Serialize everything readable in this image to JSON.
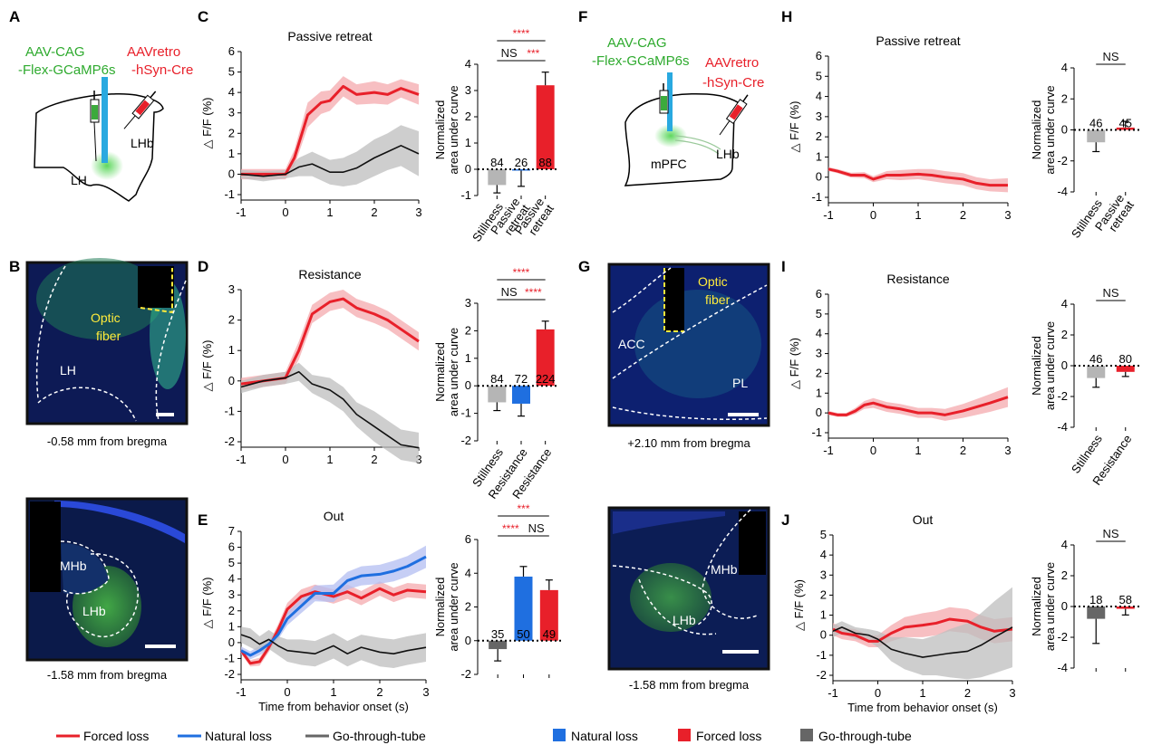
{
  "panel_labels": {
    "a": "A",
    "b": "B",
    "c": "C",
    "d": "D",
    "e": "E",
    "f": "F",
    "g": "G",
    "h": "H",
    "i": "I",
    "j": "J"
  },
  "schematic_left": {
    "green_line1": "AAV-CAG",
    "green_line2": "-Flex-GCaMP6s",
    "red_line1": "AAVretro",
    "red_line2": "-hSyn-Cre",
    "region1": "LH",
    "region2": "LHb"
  },
  "schematic_right": {
    "green_line1": "AAV-CAG",
    "green_line2": "-Flex-GCaMP6s",
    "red_line1": "AAVretro",
    "red_line2": "-hSyn-Cre",
    "region1": "mPFC",
    "region2": "LHb"
  },
  "histology": {
    "b_top": {
      "labels": [
        "Optic",
        "fiber",
        "LH"
      ],
      "caption": "-0.58 mm from bregma"
    },
    "b_bottom": {
      "labels": [
        "MHb",
        "LHb"
      ],
      "caption": "-1.58 mm from bregma"
    },
    "g_top": {
      "labels": [
        "Optic",
        "fiber",
        "ACC",
        "PL"
      ],
      "caption": "+2.10 mm from bregma"
    },
    "g_bottom": {
      "labels": [
        "MHb",
        "LHb"
      ],
      "caption": "-1.58 mm from bregma"
    }
  },
  "common": {
    "y_axis_label": "△ F/F (%)",
    "bar_y_label1": "Normalized",
    "bar_y_label2": "area under curve",
    "x_axis_label": "Time from behavior onset (s)"
  },
  "legend_left": [
    {
      "label": "Forced loss",
      "color": "#e8202a"
    },
    {
      "label": "Natural loss",
      "color": "#1f6fe0"
    },
    {
      "label": "Go-through-tube",
      "color": "#666666"
    }
  ],
  "legend_right": [
    {
      "label": "Natural loss",
      "color": "#1f6fe0"
    },
    {
      "label": "Forced loss",
      "color": "#e8202a"
    },
    {
      "label": "Go-through-tube",
      "color": "#666666"
    }
  ],
  "colors": {
    "red": "#e8202a",
    "blue": "#1f6fe0",
    "gray": "#b5b5b5",
    "darkgray": "#666666",
    "sig": "#e8202a"
  },
  "chart_data": [
    {
      "id": "C",
      "type": "line",
      "title": "Passive retreat",
      "xlim": [
        -1,
        3
      ],
      "ylim": [
        -1,
        6
      ],
      "xticks": [
        -1,
        0,
        1,
        2,
        3
      ],
      "yticks": [
        -1,
        0,
        1,
        2,
        3,
        4,
        5,
        6
      ],
      "series": [
        {
          "name": "Forced loss",
          "color": "red",
          "x": [
            -1,
            -0.5,
            0,
            0.2,
            0.5,
            0.8,
            1,
            1.3,
            1.6,
            2,
            2.3,
            2.6,
            3
          ],
          "y": [
            0,
            0,
            0,
            0.8,
            2.9,
            3.5,
            3.6,
            4.3,
            3.9,
            4.0,
            3.9,
            4.2,
            3.9
          ],
          "err": [
            0.25,
            0.25,
            0.25,
            0.4,
            0.6,
            0.55,
            0.5,
            0.5,
            0.5,
            0.55,
            0.5,
            0.45,
            0.5
          ]
        },
        {
          "name": "Go-through-tube",
          "color": "black",
          "x": [
            -1,
            -0.5,
            0,
            0.3,
            0.6,
            1,
            1.3,
            1.6,
            2,
            2.3,
            2.6,
            3
          ],
          "y": [
            0,
            -0.1,
            0,
            0.35,
            0.5,
            0.1,
            0.1,
            0.3,
            0.8,
            1.1,
            1.4,
            1.0
          ],
          "err": [
            0.2,
            0.25,
            0.2,
            0.45,
            0.6,
            0.6,
            0.7,
            0.8,
            0.9,
            0.9,
            1.0,
            1.1
          ]
        }
      ]
    },
    {
      "id": "C_bar",
      "type": "bar",
      "categories": [
        "Stillness",
        "Passive retreat",
        "Passive retreat"
      ],
      "values": [
        -0.6,
        -0.05,
        3.2
      ],
      "err": [
        0.3,
        0.6,
        0.5
      ],
      "n": [
        "84",
        "26",
        "88"
      ],
      "colors": [
        "gray",
        "blue",
        "red"
      ],
      "ylim": [
        -1,
        4
      ],
      "yticks": [
        -1,
        0,
        1,
        2,
        3,
        4
      ],
      "sig": [
        {
          "text": "NS",
          "color": "black",
          "from": 0,
          "to": 1,
          "level": 0
        },
        {
          "text": "***",
          "color": "sig",
          "from": 1,
          "to": 2,
          "level": 0
        },
        {
          "text": "****",
          "color": "sig",
          "from": 0,
          "to": 2,
          "level": 1
        }
      ]
    },
    {
      "id": "D",
      "type": "line",
      "title": "Resistance",
      "xlim": [
        -1,
        3
      ],
      "ylim": [
        -2,
        3
      ],
      "xticks": [
        -1,
        0,
        1,
        2,
        3
      ],
      "yticks": [
        -2,
        -1,
        0,
        1,
        2,
        3
      ],
      "series": [
        {
          "name": "Forced loss",
          "color": "red",
          "x": [
            -1,
            -0.5,
            0,
            0.3,
            0.6,
            1,
            1.3,
            1.6,
            2,
            2.3,
            2.6,
            3
          ],
          "y": [
            -0.1,
            0,
            0.1,
            1.0,
            2.2,
            2.6,
            2.7,
            2.4,
            2.2,
            2.0,
            1.7,
            1.3
          ],
          "err": [
            0.2,
            0.2,
            0.2,
            0.3,
            0.3,
            0.3,
            0.3,
            0.3,
            0.3,
            0.3,
            0.3,
            0.3
          ]
        },
        {
          "name": "Go-through-tube",
          "color": "black",
          "x": [
            -1,
            -0.5,
            0,
            0.3,
            0.6,
            1,
            1.3,
            1.6,
            2,
            2.3,
            2.6,
            3
          ],
          "y": [
            -0.2,
            0,
            0.1,
            0.3,
            -0.1,
            -0.3,
            -0.6,
            -1.1,
            -1.5,
            -1.8,
            -2.1,
            -2.2
          ],
          "err": [
            0.2,
            0.2,
            0.2,
            0.3,
            0.3,
            0.4,
            0.4,
            0.4,
            0.5,
            0.5,
            0.5,
            0.5
          ]
        }
      ]
    },
    {
      "id": "D_bar",
      "type": "bar",
      "categories": [
        "Stillness",
        "Resistance",
        "Resistance"
      ],
      "values": [
        -0.6,
        -0.65,
        2.05
      ],
      "err": [
        0.3,
        0.45,
        0.3
      ],
      "n": [
        "84",
        "72",
        "224"
      ],
      "colors": [
        "gray",
        "blue",
        "red"
      ],
      "ylim": [
        -2,
        3
      ],
      "yticks": [
        -2,
        -1,
        0,
        1,
        2,
        3
      ],
      "sig": [
        {
          "text": "NS",
          "color": "black",
          "from": 0,
          "to": 1,
          "level": 0
        },
        {
          "text": "****",
          "color": "sig",
          "from": 1,
          "to": 2,
          "level": 0
        },
        {
          "text": "****",
          "color": "sig",
          "from": 0,
          "to": 2,
          "level": 1
        }
      ]
    },
    {
      "id": "E",
      "type": "line",
      "title": "Out",
      "xlim": [
        -1,
        3
      ],
      "ylim": [
        -2,
        7
      ],
      "xticks": [
        -1,
        0,
        1,
        2,
        3
      ],
      "yticks": [
        -2,
        -1,
        0,
        1,
        2,
        3,
        4,
        5,
        6,
        7
      ],
      "xlabel": "Time from behavior onset (s)",
      "series": [
        {
          "name": "Forced loss",
          "color": "red",
          "x": [
            -1,
            -0.8,
            -0.6,
            -0.4,
            -0.2,
            0,
            0.3,
            0.6,
            1,
            1.3,
            1.6,
            2,
            2.3,
            2.6,
            3
          ],
          "y": [
            -0.5,
            -1.3,
            -1.2,
            -0.3,
            0.8,
            2.1,
            2.9,
            3.2,
            2.9,
            3.2,
            2.8,
            3.4,
            3.0,
            3.3,
            3.2
          ],
          "err": [
            0.2,
            0.2,
            0.25,
            0.3,
            0.35,
            0.4,
            0.45,
            0.45,
            0.45,
            0.45,
            0.45,
            0.45,
            0.45,
            0.45,
            0.45
          ]
        },
        {
          "name": "Natural loss",
          "color": "blue",
          "x": [
            -1,
            -0.8,
            -0.6,
            -0.4,
            -0.2,
            0,
            0.3,
            0.6,
            1,
            1.3,
            1.6,
            2,
            2.3,
            2.6,
            3
          ],
          "y": [
            -0.5,
            -0.8,
            -0.5,
            -0.1,
            0.5,
            1.5,
            2.3,
            3.1,
            3.1,
            3.9,
            4.2,
            4.3,
            4.5,
            4.8,
            5.4
          ],
          "err": [
            0.25,
            0.25,
            0.3,
            0.3,
            0.3,
            0.4,
            0.45,
            0.5,
            0.55,
            0.55,
            0.6,
            0.6,
            0.65,
            0.65,
            0.7
          ]
        },
        {
          "name": "Go-through-tube",
          "color": "black",
          "x": [
            -1,
            -0.8,
            -0.6,
            -0.4,
            -0.2,
            0,
            0.3,
            0.6,
            1,
            1.3,
            1.6,
            2,
            2.3,
            2.6,
            3
          ],
          "y": [
            0.5,
            0.3,
            -0.1,
            0.2,
            -0.2,
            -0.5,
            -0.6,
            -0.7,
            -0.2,
            -0.7,
            -0.3,
            -0.6,
            -0.7,
            -0.5,
            -0.3
          ],
          "err": [
            0.5,
            0.6,
            0.5,
            0.6,
            0.6,
            0.7,
            0.8,
            0.8,
            0.8,
            0.8,
            0.8,
            0.9,
            0.9,
            0.9,
            0.9
          ]
        }
      ]
    },
    {
      "id": "E_bar",
      "type": "bar",
      "categories": [
        "",
        "",
        ""
      ],
      "values": [
        -0.5,
        3.8,
        3.0
      ],
      "err": [
        0.7,
        0.6,
        0.6
      ],
      "n": [
        "35",
        "50",
        "49"
      ],
      "colors": [
        "darkgray",
        "blue",
        "red"
      ],
      "ylim": [
        -2,
        6
      ],
      "yticks": [
        -2,
        0,
        2,
        4,
        6
      ],
      "sig": [
        {
          "text": "****",
          "color": "sig",
          "from": 0,
          "to": 1,
          "level": 0
        },
        {
          "text": "NS",
          "color": "black",
          "from": 1,
          "to": 2,
          "level": 0
        },
        {
          "text": "***",
          "color": "sig",
          "from": 0,
          "to": 2,
          "level": 1
        }
      ]
    },
    {
      "id": "H",
      "type": "line",
      "title": "Passive retreat",
      "xlim": [
        -1,
        3
      ],
      "ylim": [
        -1,
        6
      ],
      "xticks": [
        -1,
        0,
        1,
        2,
        3
      ],
      "yticks": [
        -1,
        0,
        1,
        2,
        3,
        4,
        5,
        6
      ],
      "series": [
        {
          "name": "Forced loss",
          "color": "red",
          "x": [
            -1,
            -0.8,
            -0.5,
            -0.2,
            0,
            0.3,
            0.6,
            1,
            1.3,
            1.6,
            2,
            2.3,
            2.6,
            3
          ],
          "y": [
            0.4,
            0.3,
            0.1,
            0.1,
            -0.1,
            0.1,
            0.1,
            0.15,
            0.1,
            0.0,
            -0.1,
            -0.3,
            -0.4,
            -0.4
          ],
          "err": [
            0.1,
            0.1,
            0.12,
            0.15,
            0.15,
            0.2,
            0.25,
            0.25,
            0.3,
            0.3,
            0.3,
            0.3,
            0.3,
            0.35
          ]
        }
      ]
    },
    {
      "id": "H_bar",
      "type": "bar",
      "categories": [
        "Stillness",
        "Passive retreat"
      ],
      "values": [
        -0.8,
        0.15
      ],
      "err": [
        0.6,
        0.4
      ],
      "n": [
        "46",
        "45"
      ],
      "colors": [
        "gray",
        "red"
      ],
      "ylim": [
        -4,
        4
      ],
      "yticks": [
        -4,
        -2,
        0,
        2,
        4
      ],
      "sig": [
        {
          "text": "NS",
          "color": "black",
          "from": 0,
          "to": 1,
          "level": 0
        }
      ]
    },
    {
      "id": "I",
      "type": "line",
      "title": "Resistance",
      "xlim": [
        -1,
        3
      ],
      "ylim": [
        -1,
        6
      ],
      "xticks": [
        -1,
        0,
        1,
        2,
        3
      ],
      "yticks": [
        -1,
        0,
        1,
        2,
        3,
        4,
        5,
        6
      ],
      "series": [
        {
          "name": "Forced loss",
          "color": "red",
          "x": [
            -1,
            -0.8,
            -0.6,
            -0.4,
            -0.2,
            0,
            0.3,
            0.6,
            1,
            1.3,
            1.6,
            2,
            2.3,
            2.6,
            3
          ],
          "y": [
            0,
            -0.1,
            -0.1,
            0.1,
            0.4,
            0.5,
            0.3,
            0.2,
            0.0,
            0.0,
            -0.1,
            0.1,
            0.3,
            0.5,
            0.8
          ],
          "err": [
            0.1,
            0.1,
            0.1,
            0.15,
            0.2,
            0.25,
            0.25,
            0.25,
            0.25,
            0.25,
            0.3,
            0.35,
            0.4,
            0.45,
            0.5
          ]
        }
      ]
    },
    {
      "id": "I_bar",
      "type": "bar",
      "categories": [
        "Stillness",
        "Resistance"
      ],
      "values": [
        -0.8,
        -0.4
      ],
      "err": [
        0.6,
        0.3
      ],
      "n": [
        "46",
        "80"
      ],
      "colors": [
        "gray",
        "red"
      ],
      "ylim": [
        -4,
        4
      ],
      "yticks": [
        -4,
        -2,
        0,
        2,
        4
      ],
      "sig": [
        {
          "text": "NS",
          "color": "black",
          "from": 0,
          "to": 1,
          "level": 0
        }
      ]
    },
    {
      "id": "J",
      "type": "line",
      "title": "Out",
      "xlim": [
        -1,
        3
      ],
      "ylim": [
        -2,
        5
      ],
      "xticks": [
        -1,
        0,
        1,
        2,
        3
      ],
      "yticks": [
        -2,
        -1,
        0,
        1,
        2,
        3,
        4,
        5
      ],
      "xlabel": "Time from behavior onset (s)",
      "series": [
        {
          "name": "Forced loss",
          "color": "red",
          "x": [
            -1,
            -0.8,
            -0.5,
            -0.2,
            0,
            0.3,
            0.6,
            1,
            1.3,
            1.6,
            2,
            2.3,
            2.6,
            3
          ],
          "y": [
            0.3,
            0.1,
            0.0,
            -0.3,
            -0.3,
            0.1,
            0.4,
            0.5,
            0.6,
            0.8,
            0.7,
            0.4,
            0.2,
            0.3
          ],
          "err": [
            0.3,
            0.3,
            0.3,
            0.3,
            0.3,
            0.4,
            0.5,
            0.6,
            0.6,
            0.6,
            0.6,
            0.6,
            0.6,
            0.6
          ]
        },
        {
          "name": "Go-through-tube",
          "color": "black",
          "x": [
            -1,
            -0.8,
            -0.5,
            -0.2,
            0,
            0.3,
            0.6,
            1,
            1.3,
            1.6,
            2,
            2.3,
            2.6,
            3
          ],
          "y": [
            0.2,
            0.4,
            0.1,
            0.0,
            -0.2,
            -0.7,
            -0.9,
            -1.1,
            -1.0,
            -0.9,
            -0.8,
            -0.5,
            -0.1,
            0.4
          ],
          "err": [
            0.3,
            0.3,
            0.3,
            0.3,
            0.4,
            0.6,
            0.8,
            0.9,
            1.0,
            1.2,
            1.4,
            1.6,
            1.8,
            2.0
          ]
        }
      ]
    },
    {
      "id": "J_bar",
      "type": "bar",
      "categories": [
        "",
        ""
      ],
      "values": [
        -0.8,
        -0.15
      ],
      "err": [
        1.6,
        0.4
      ],
      "n": [
        "18",
        "58"
      ],
      "colors": [
        "darkgray",
        "red"
      ],
      "ylim": [
        -4,
        4
      ],
      "yticks": [
        -4,
        -2,
        0,
        2,
        4
      ],
      "sig": [
        {
          "text": "NS",
          "color": "black",
          "from": 0,
          "to": 1,
          "level": 0
        }
      ]
    }
  ]
}
